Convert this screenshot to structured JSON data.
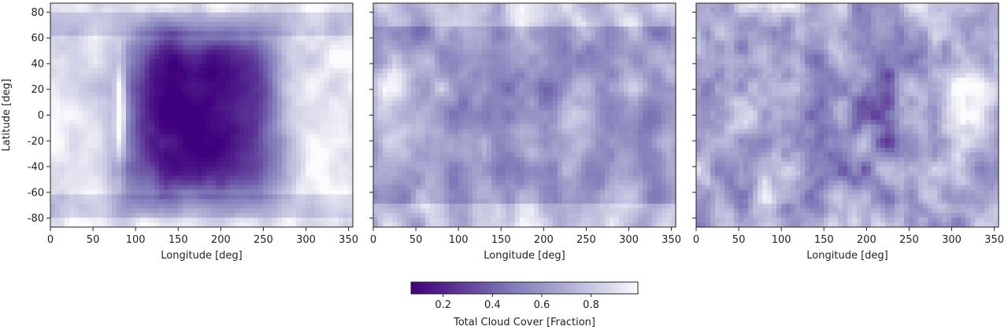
{
  "chart_data": {
    "type": "heatmap",
    "panels": [
      {
        "xlabel": "Longitude [deg]",
        "ylabel": "Latitude [deg]",
        "xlim": [
          0,
          355
        ],
        "ylim": [
          -87,
          87
        ],
        "xticks": [
          0,
          50,
          100,
          150,
          200,
          250,
          300,
          350
        ],
        "yticks": [
          -80,
          -60,
          -40,
          -20,
          0,
          20,
          40,
          60,
          80
        ],
        "show_ytick_labels": true,
        "pattern": "dayside-clear",
        "description_cloud_fraction_min": 0.05,
        "description_cloud_fraction_max": 0.95
      },
      {
        "xlabel": "Longitude [deg]",
        "ylabel": "",
        "xlim": [
          0,
          355
        ],
        "ylim": [
          -87,
          87
        ],
        "xticks": [
          0,
          50,
          100,
          150,
          200,
          250,
          300,
          350
        ],
        "yticks": [
          -80,
          -60,
          -40,
          -20,
          0,
          20,
          40,
          60,
          80
        ],
        "show_ytick_labels": false,
        "pattern": "moderate-uniform",
        "description_cloud_fraction_min": 0.35,
        "description_cloud_fraction_max": 0.95
      },
      {
        "xlabel": "Longitude [deg]",
        "ylabel": "",
        "xlim": [
          0,
          355
        ],
        "ylim": [
          -87,
          87
        ],
        "xticks": [
          0,
          50,
          100,
          150,
          200,
          250,
          300,
          350
        ],
        "yticks": [
          -80,
          -60,
          -40,
          -20,
          0,
          20,
          40,
          60,
          80
        ],
        "show_ytick_labels": false,
        "pattern": "patchy",
        "description_cloud_fraction_min": 0.2,
        "description_cloud_fraction_max": 0.98
      }
    ],
    "colorbar": {
      "label": "Total Cloud Cover [Fraction]",
      "range": [
        0.07,
        0.99
      ],
      "ticks": [
        0.2,
        0.4,
        0.6,
        0.8
      ],
      "colormap": "Purples_r",
      "color_low": "#3f007d",
      "color_mid": "#9e9ac8",
      "color_high": "#fcfbfd"
    }
  }
}
